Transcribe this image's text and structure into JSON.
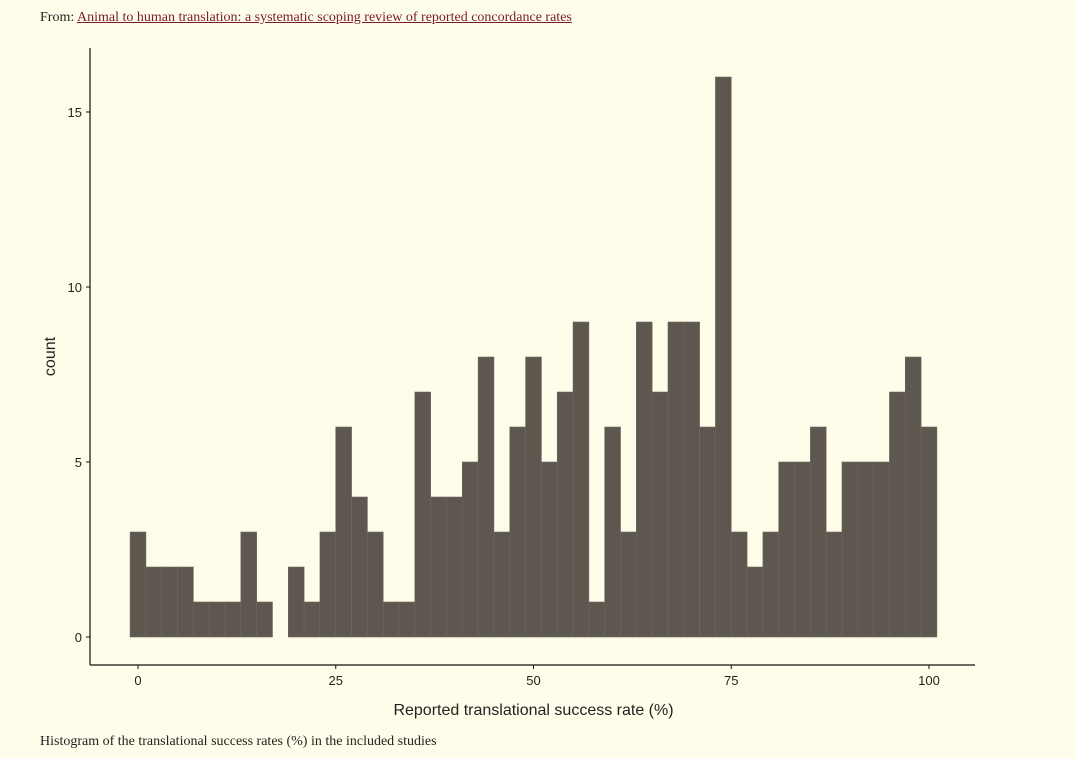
{
  "header": {
    "from_label": "From:",
    "link_text": "Animal to human translation: a systematic scoping review of reported concordance rates"
  },
  "caption": "Histogram of the translational success rates (%) in the included studies",
  "chart_data": {
    "type": "bar",
    "xlabel": "Reported translational success rate (%)",
    "ylabel": "count",
    "x_ticks": [
      0,
      25,
      50,
      75,
      100
    ],
    "y_ticks": [
      0,
      5,
      10,
      15
    ],
    "xlim": [
      -5,
      105
    ],
    "ylim": [
      0,
      16.5
    ],
    "bin_width": 2,
    "bin_centers": [
      0,
      2,
      4,
      6,
      8,
      10,
      12,
      14,
      16,
      18,
      20,
      22,
      24,
      26,
      28,
      30,
      32,
      34,
      36,
      38,
      40,
      42,
      44,
      46,
      48,
      50,
      52,
      54,
      56,
      58,
      60,
      62,
      64,
      66,
      68,
      70,
      72,
      74,
      76,
      78,
      80,
      82,
      84,
      86,
      88,
      90,
      92,
      94,
      96,
      98,
      100
    ],
    "values": [
      3,
      2,
      2,
      2,
      1,
      1,
      1,
      3,
      1,
      0,
      2,
      1,
      3,
      6,
      4,
      3,
      1,
      1,
      7,
      4,
      4,
      5,
      8,
      3,
      6,
      8,
      5,
      7,
      9,
      1,
      6,
      3,
      9,
      7,
      9,
      9,
      6,
      16,
      3,
      2,
      3,
      5,
      5,
      6,
      3,
      5,
      5,
      5,
      7,
      8,
      6
    ],
    "bar_color": "#5d5750",
    "bar_edge_color": "#6e6861",
    "background": "#fefdea",
    "grid": false
  }
}
